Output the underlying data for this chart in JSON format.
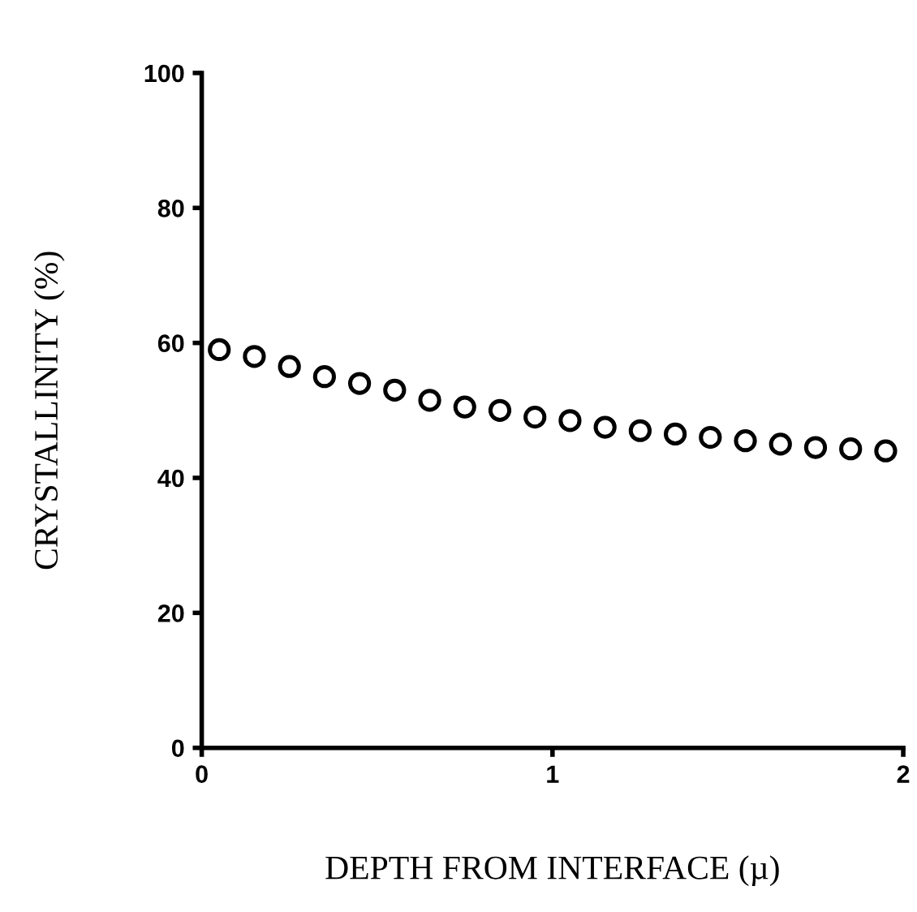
{
  "chart_data": {
    "type": "scatter",
    "xlabel": "DEPTH FROM INTERFACE (µ)",
    "ylabel": "CRYSTALLINITY (%)",
    "x": [
      0.05,
      0.15,
      0.25,
      0.35,
      0.45,
      0.55,
      0.65,
      0.75,
      0.85,
      0.95,
      1.05,
      1.15,
      1.25,
      1.35,
      1.45,
      1.55,
      1.65,
      1.75,
      1.85,
      1.95
    ],
    "values": [
      59,
      58,
      56.5,
      55,
      54,
      53,
      51.5,
      50.5,
      50,
      49,
      48.5,
      47.5,
      47,
      46.5,
      46,
      45.5,
      45,
      44.5,
      44.3,
      44
    ],
    "color": "#000000",
    "marker": "circle",
    "xlim": [
      0,
      2
    ],
    "ylim": [
      0,
      100
    ],
    "xticks": [
      0,
      1,
      2
    ],
    "yticks": [
      0,
      20,
      40,
      60,
      80,
      100
    ],
    "grid": false
  }
}
